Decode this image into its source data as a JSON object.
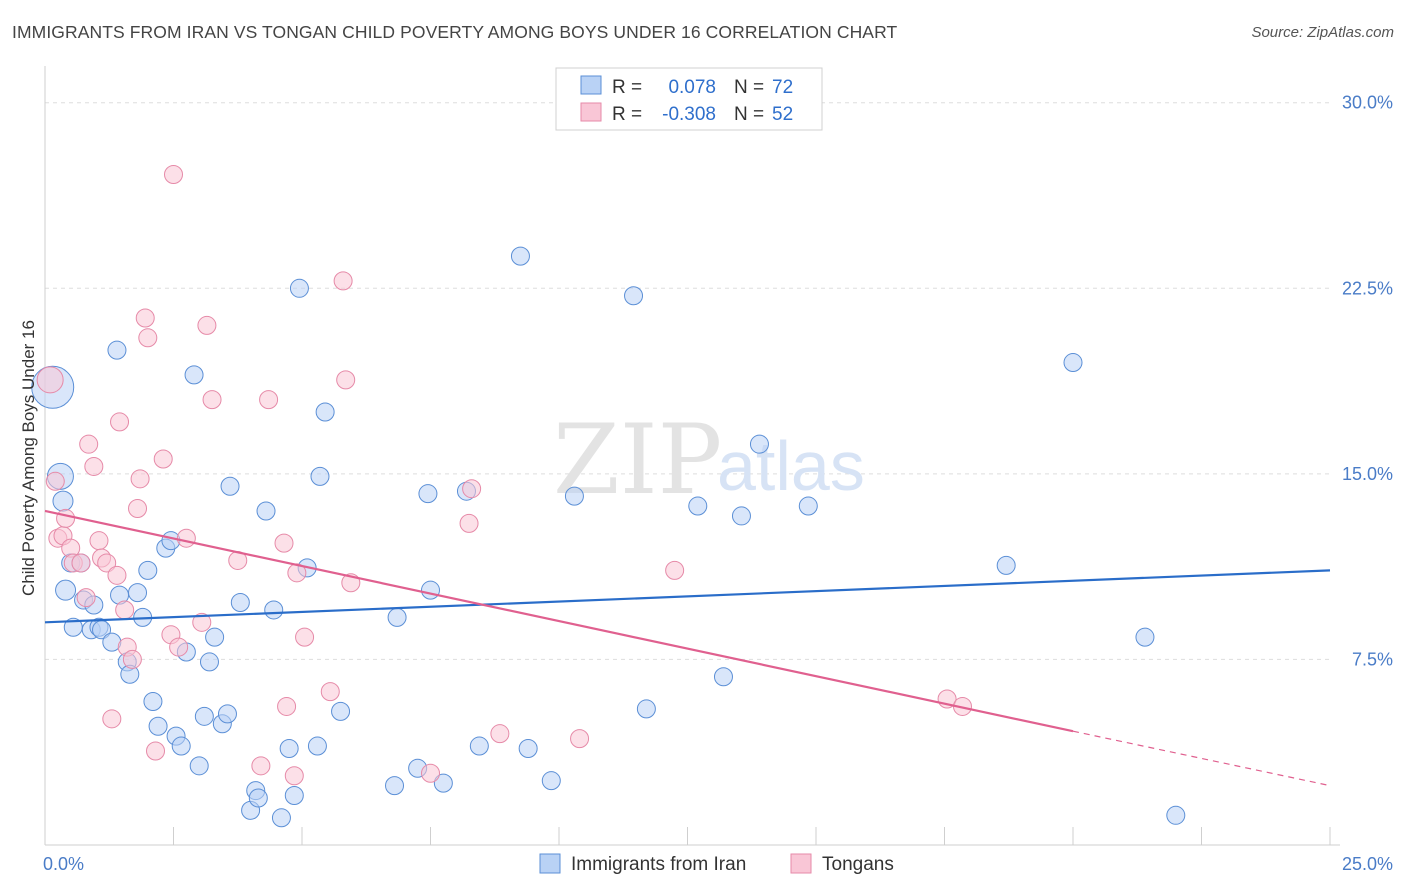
{
  "header": {
    "title": "IMMIGRANTS FROM IRAN VS TONGAN CHILD POVERTY AMONG BOYS UNDER 16 CORRELATION CHART",
    "source": "Source: ZipAtlas.com"
  },
  "watermark": {
    "zip": "ZIP",
    "atlas": "atlas"
  },
  "colors": {
    "iran_fill": "#b9d2f5",
    "iran_stroke": "#5b8fd6",
    "iran_line": "#2a6dc9",
    "tongan_fill": "#f9c6d6",
    "tongan_stroke": "#e68aa8",
    "tongan_line": "#e0608f",
    "tick_label": "#4a7cc7",
    "grid": "#dddddd"
  },
  "legend": {
    "rows": [
      {
        "r_label": "R =",
        "r_value": "0.078",
        "n_label": "N =",
        "n_value": "72"
      },
      {
        "r_label": "R =",
        "r_value": "-0.308",
        "n_label": "N =",
        "n_value": "52"
      }
    ]
  },
  "chart_data": {
    "type": "scatter",
    "title": "IMMIGRANTS FROM IRAN VS TONGAN CHILD POVERTY AMONG BOYS UNDER 16 CORRELATION CHART",
    "xlabel": "",
    "ylabel": "Child Poverty Among Boys Under 16",
    "xlim": [
      0,
      25
    ],
    "ylim": [
      0,
      31
    ],
    "x_tick_labels": [
      {
        "value": 0,
        "label": "0.0%"
      },
      {
        "value": 25,
        "label": "25.0%"
      }
    ],
    "x_minor_ticks": [
      2.5,
      5,
      7.5,
      10,
      12.5,
      15,
      17.5,
      20,
      22.5,
      25
    ],
    "y_ticks": [
      {
        "value": 7.5,
        "label": "7.5%"
      },
      {
        "value": 15,
        "label": "15.0%"
      },
      {
        "value": 22.5,
        "label": "22.5%"
      },
      {
        "value": 30,
        "label": "30.0%"
      }
    ],
    "grid": true,
    "legend_position": "top-center",
    "series": [
      {
        "name": "Immigrants from Iran",
        "points": [
          [
            0.15,
            18.5,
            22
          ],
          [
            0.3,
            14.9,
            14
          ],
          [
            0.35,
            13.9,
            11
          ],
          [
            0.4,
            10.3,
            11
          ],
          [
            0.5,
            11.4,
            10
          ],
          [
            0.55,
            8.8,
            10
          ],
          [
            0.7,
            11.4,
            10
          ],
          [
            0.75,
            9.9,
            10
          ],
          [
            0.9,
            8.7,
            10
          ],
          [
            0.95,
            9.7,
            10
          ],
          [
            1.05,
            8.8,
            10
          ],
          [
            1.1,
            8.7,
            10
          ],
          [
            1.3,
            8.2,
            10
          ],
          [
            1.4,
            20.0,
            10
          ],
          [
            1.45,
            10.1,
            10
          ],
          [
            1.6,
            7.4,
            10
          ],
          [
            1.65,
            6.9,
            10
          ],
          [
            1.8,
            10.2,
            10
          ],
          [
            1.9,
            9.2,
            10
          ],
          [
            2.0,
            11.1,
            10
          ],
          [
            2.1,
            5.8,
            10
          ],
          [
            2.2,
            4.8,
            10
          ],
          [
            2.35,
            12.0,
            10
          ],
          [
            2.45,
            12.3,
            10
          ],
          [
            2.55,
            4.4,
            10
          ],
          [
            2.65,
            4.0,
            10
          ],
          [
            2.75,
            7.8,
            10
          ],
          [
            2.9,
            19.0,
            10
          ],
          [
            3.0,
            3.2,
            10
          ],
          [
            3.1,
            5.2,
            10
          ],
          [
            3.2,
            7.4,
            10
          ],
          [
            3.3,
            8.4,
            10
          ],
          [
            3.45,
            4.9,
            10
          ],
          [
            3.55,
            5.3,
            10
          ],
          [
            3.6,
            14.5,
            10
          ],
          [
            3.8,
            9.8,
            10
          ],
          [
            4.0,
            1.4,
            10
          ],
          [
            4.1,
            2.2,
            10
          ],
          [
            4.15,
            1.9,
            10
          ],
          [
            4.3,
            13.5,
            10
          ],
          [
            4.45,
            9.5,
            10
          ],
          [
            4.6,
            1.1,
            10
          ],
          [
            4.75,
            3.9,
            10
          ],
          [
            4.85,
            2.0,
            10
          ],
          [
            4.95,
            22.5,
            10
          ],
          [
            5.1,
            11.2,
            10
          ],
          [
            5.3,
            4.0,
            10
          ],
          [
            5.35,
            14.9,
            10
          ],
          [
            5.45,
            17.5,
            10
          ],
          [
            5.75,
            5.4,
            10
          ],
          [
            6.8,
            2.4,
            10
          ],
          [
            6.85,
            9.2,
            10
          ],
          [
            7.25,
            3.1,
            10
          ],
          [
            7.45,
            14.2,
            10
          ],
          [
            7.5,
            10.3,
            10
          ],
          [
            7.75,
            2.5,
            10
          ],
          [
            8.2,
            14.3,
            10
          ],
          [
            8.45,
            4.0,
            10
          ],
          [
            9.25,
            23.8,
            10
          ],
          [
            9.4,
            3.9,
            10
          ],
          [
            9.85,
            2.6,
            10
          ],
          [
            10.3,
            14.1,
            10
          ],
          [
            11.45,
            22.2,
            10
          ],
          [
            11.7,
            5.5,
            10
          ],
          [
            12.7,
            13.7,
            10
          ],
          [
            13.2,
            6.8,
            10
          ],
          [
            13.55,
            13.3,
            10
          ],
          [
            13.9,
            16.2,
            10
          ],
          [
            14.85,
            13.7,
            10
          ],
          [
            18.7,
            11.3,
            10
          ],
          [
            20.0,
            19.5,
            10
          ],
          [
            21.4,
            8.4,
            10
          ],
          [
            22.0,
            1.2,
            10
          ]
        ],
        "trend": {
          "x": [
            0,
            25
          ],
          "y": [
            9.0,
            11.1
          ]
        }
      },
      {
        "name": "Tongans",
        "points": [
          [
            0.1,
            18.8,
            14
          ],
          [
            0.2,
            14.7,
            10
          ],
          [
            0.25,
            12.4,
            10
          ],
          [
            0.35,
            12.5,
            10
          ],
          [
            0.4,
            13.2,
            10
          ],
          [
            0.5,
            12.0,
            10
          ],
          [
            0.55,
            11.4,
            10
          ],
          [
            0.7,
            11.4,
            10
          ],
          [
            0.8,
            10.0,
            10
          ],
          [
            0.85,
            16.2,
            10
          ],
          [
            0.95,
            15.3,
            10
          ],
          [
            1.05,
            12.3,
            10
          ],
          [
            1.1,
            11.6,
            10
          ],
          [
            1.2,
            11.4,
            10
          ],
          [
            1.3,
            5.1,
            10
          ],
          [
            1.4,
            10.9,
            10
          ],
          [
            1.45,
            17.1,
            10
          ],
          [
            1.55,
            9.5,
            10
          ],
          [
            1.6,
            8.0,
            10
          ],
          [
            1.7,
            7.5,
            10
          ],
          [
            1.8,
            13.6,
            10
          ],
          [
            1.85,
            14.8,
            10
          ],
          [
            1.95,
            21.3,
            10
          ],
          [
            2.0,
            20.5,
            10
          ],
          [
            2.15,
            3.8,
            10
          ],
          [
            2.3,
            15.6,
            10
          ],
          [
            2.45,
            8.5,
            10
          ],
          [
            2.5,
            27.1,
            10
          ],
          [
            2.6,
            8.0,
            10
          ],
          [
            2.75,
            12.4,
            10
          ],
          [
            3.05,
            9.0,
            10
          ],
          [
            3.15,
            21.0,
            10
          ],
          [
            3.25,
            18.0,
            10
          ],
          [
            3.75,
            11.5,
            10
          ],
          [
            4.2,
            3.2,
            10
          ],
          [
            4.35,
            18.0,
            10
          ],
          [
            4.65,
            12.2,
            10
          ],
          [
            4.7,
            5.6,
            10
          ],
          [
            4.85,
            2.8,
            10
          ],
          [
            4.9,
            11.0,
            10
          ],
          [
            5.05,
            8.4,
            10
          ],
          [
            5.55,
            6.2,
            10
          ],
          [
            5.8,
            22.8,
            10
          ],
          [
            5.85,
            18.8,
            10
          ],
          [
            5.95,
            10.6,
            10
          ],
          [
            7.5,
            2.9,
            10
          ],
          [
            8.25,
            13.0,
            10
          ],
          [
            8.3,
            14.4,
            10
          ],
          [
            8.85,
            4.5,
            10
          ],
          [
            10.4,
            4.3,
            10
          ],
          [
            12.25,
            11.1,
            10
          ],
          [
            17.55,
            5.9,
            10
          ],
          [
            17.85,
            5.6,
            10
          ]
        ],
        "trend": {
          "x": [
            0,
            20
          ],
          "y": [
            13.5,
            4.6
          ]
        },
        "trend_dashed": {
          "x": [
            20,
            25
          ],
          "y": [
            4.6,
            2.4
          ]
        }
      }
    ]
  },
  "bottom_legend": {
    "items": [
      "Immigrants from Iran",
      "Tongans"
    ]
  }
}
